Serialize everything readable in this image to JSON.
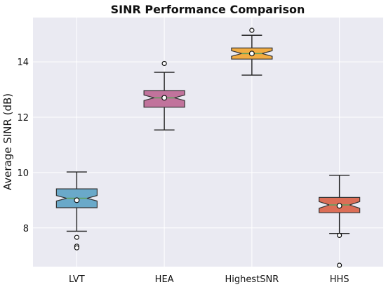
{
  "chart_data": {
    "type": "box",
    "title": "SINR Performance Comparison",
    "xlabel": "",
    "ylabel": "Average SINR (dB)",
    "categories": [
      "LVT",
      "HEA",
      "HighestSNR",
      "HHS"
    ],
    "ylim": [
      6.6,
      15.6
    ],
    "yticks": [
      8,
      10,
      12,
      14
    ],
    "grid": true,
    "notched": true,
    "show_means": true,
    "boxes": [
      {
        "label": "LVT",
        "color": "#6aa9c9",
        "whisker_low": 7.88,
        "q1": 8.73,
        "median": 9.07,
        "q3": 9.41,
        "whisker_high": 10.02,
        "mean": 9.0,
        "notch_low": 8.97,
        "notch_high": 9.17,
        "outliers": [
          7.66,
          7.34,
          7.28
        ]
      },
      {
        "label": "HEA",
        "color": "#c1739c",
        "whisker_low": 11.54,
        "q1": 12.36,
        "median": 12.7,
        "q3": 12.96,
        "whisker_high": 13.62,
        "mean": 12.7,
        "notch_low": 12.6,
        "notch_high": 12.8,
        "outliers": [
          13.94
        ]
      },
      {
        "label": "HighestSNR",
        "color": "#f2ac42",
        "whisker_low": 13.52,
        "q1": 14.1,
        "median": 14.3,
        "q3": 14.5,
        "whisker_high": 14.96,
        "mean": 14.3,
        "notch_low": 14.2,
        "notch_high": 14.4,
        "outliers": [
          15.14
        ]
      },
      {
        "label": "HHS",
        "color": "#dc6e57",
        "whisker_low": 7.8,
        "q1": 8.55,
        "median": 8.83,
        "q3": 9.1,
        "whisker_high": 9.9,
        "mean": 8.8,
        "notch_low": 8.71,
        "notch_high": 8.95,
        "outliers": [
          7.73,
          6.65
        ]
      }
    ]
  }
}
